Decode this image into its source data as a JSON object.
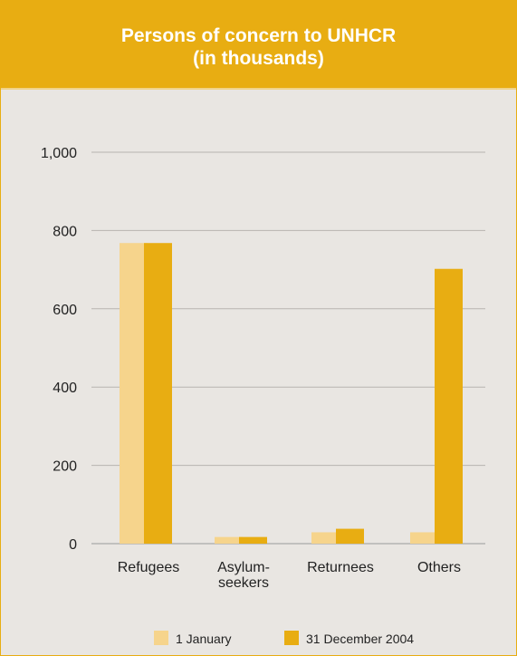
{
  "chart_data": {
    "type": "bar",
    "title": [
      "Persons of concern to UNHCR",
      "(in thousands)"
    ],
    "categories": [
      [
        "Refugees"
      ],
      [
        "Asylum-",
        "seekers"
      ],
      [
        "Returnees"
      ],
      [
        "Others"
      ]
    ],
    "series": [
      {
        "name": "1 January",
        "color": "#f6d48c",
        "values": [
          768,
          17,
          29,
          29
        ]
      },
      {
        "name": "31 December 2004",
        "color": "#e8ad12",
        "values": [
          768,
          17,
          38,
          702
        ]
      }
    ],
    "yticks": [
      "0",
      "200",
      "400",
      "600",
      "800",
      "1,000"
    ],
    "ylim": [
      0,
      1000
    ],
    "grid": true,
    "legend": "bottom"
  }
}
